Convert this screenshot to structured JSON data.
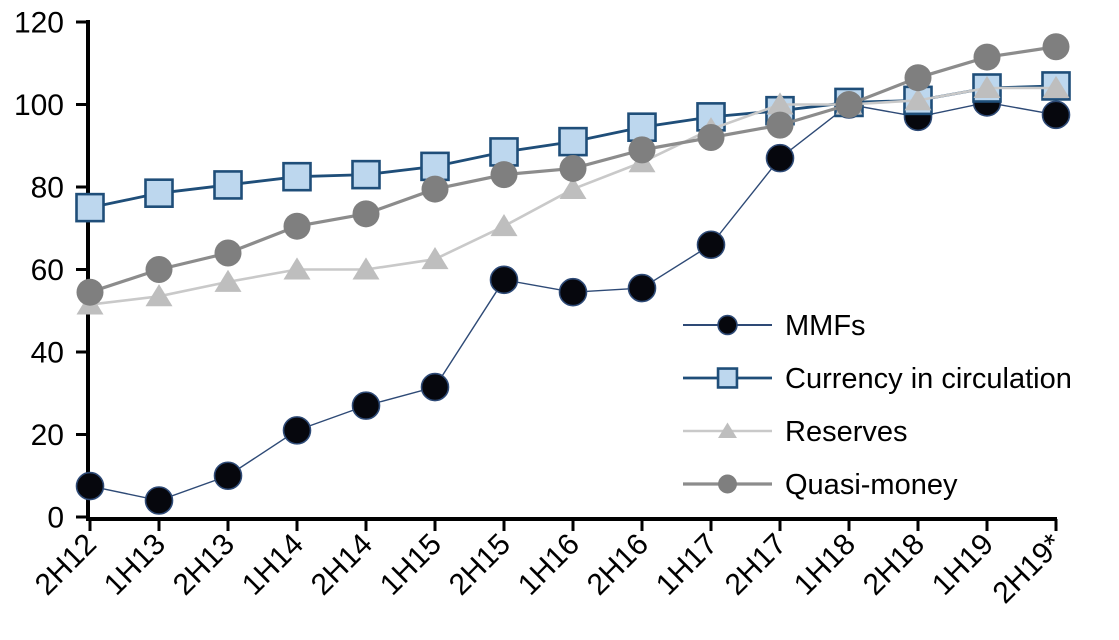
{
  "chart_data": {
    "type": "line",
    "title": "",
    "categories": [
      "2H12",
      "1H13",
      "2H13",
      "1H14",
      "2H14",
      "1H15",
      "2H15",
      "1H16",
      "2H16",
      "1H17",
      "2H17",
      "1H18",
      "2H18",
      "1H19",
      "2H19*"
    ],
    "series": [
      {
        "name": "MMFs",
        "marker": "circle",
        "marker_fill": "#06070d",
        "marker_stroke": "#2E4A76",
        "line_color": "#2E4A76",
        "line_width": 1.4,
        "marker_size": 27,
        "values": [
          7.5,
          4,
          10,
          21,
          27,
          31.5,
          57.5,
          54.5,
          55.5,
          66,
          87,
          100,
          97,
          100.5,
          97.5
        ]
      },
      {
        "name": "Currency in circulation",
        "marker": "square",
        "marker_fill": "#BDD7EE",
        "marker_stroke": "#1F4E79",
        "line_color": "#1F4E79",
        "line_width": 2.8,
        "marker_size": 27,
        "values": [
          75,
          78.5,
          80.5,
          82.5,
          83,
          85,
          88.5,
          91,
          94.5,
          97,
          98.5,
          100.5,
          101,
          104,
          104.5
        ]
      },
      {
        "name": "Reserves",
        "marker": "triangle",
        "marker_fill": "#BEBEBE",
        "marker_stroke": "none",
        "line_color": "#C9C9C9",
        "line_width": 2.6,
        "marker_size": 27,
        "values": [
          51.5,
          53.5,
          57,
          60,
          60,
          62.5,
          70.5,
          79.5,
          86,
          94,
          100,
          100,
          101,
          104,
          104
        ]
      },
      {
        "name": "Quasi-money",
        "marker": "circle",
        "marker_fill": "#7F7F7F",
        "marker_stroke": "none",
        "line_color": "#8C8C8C",
        "line_width": 3.2,
        "marker_size": 27,
        "values": [
          54.5,
          60,
          64,
          70.5,
          73.5,
          79.5,
          83,
          84.5,
          89,
          92,
          95,
          100,
          106.5,
          111.5,
          114
        ]
      }
    ],
    "xlabel": "",
    "ylabel": "",
    "ylim": [
      0,
      120
    ],
    "yticks": [
      0,
      20,
      40,
      60,
      80,
      100,
      120
    ],
    "grid": false,
    "legend_position": "inside-right",
    "legend_entries": [
      "MMFs",
      "Currency in circulation",
      "Reserves",
      "Quasi-money"
    ],
    "axis_color": "#000000",
    "background_color": "#FFFFFF"
  }
}
